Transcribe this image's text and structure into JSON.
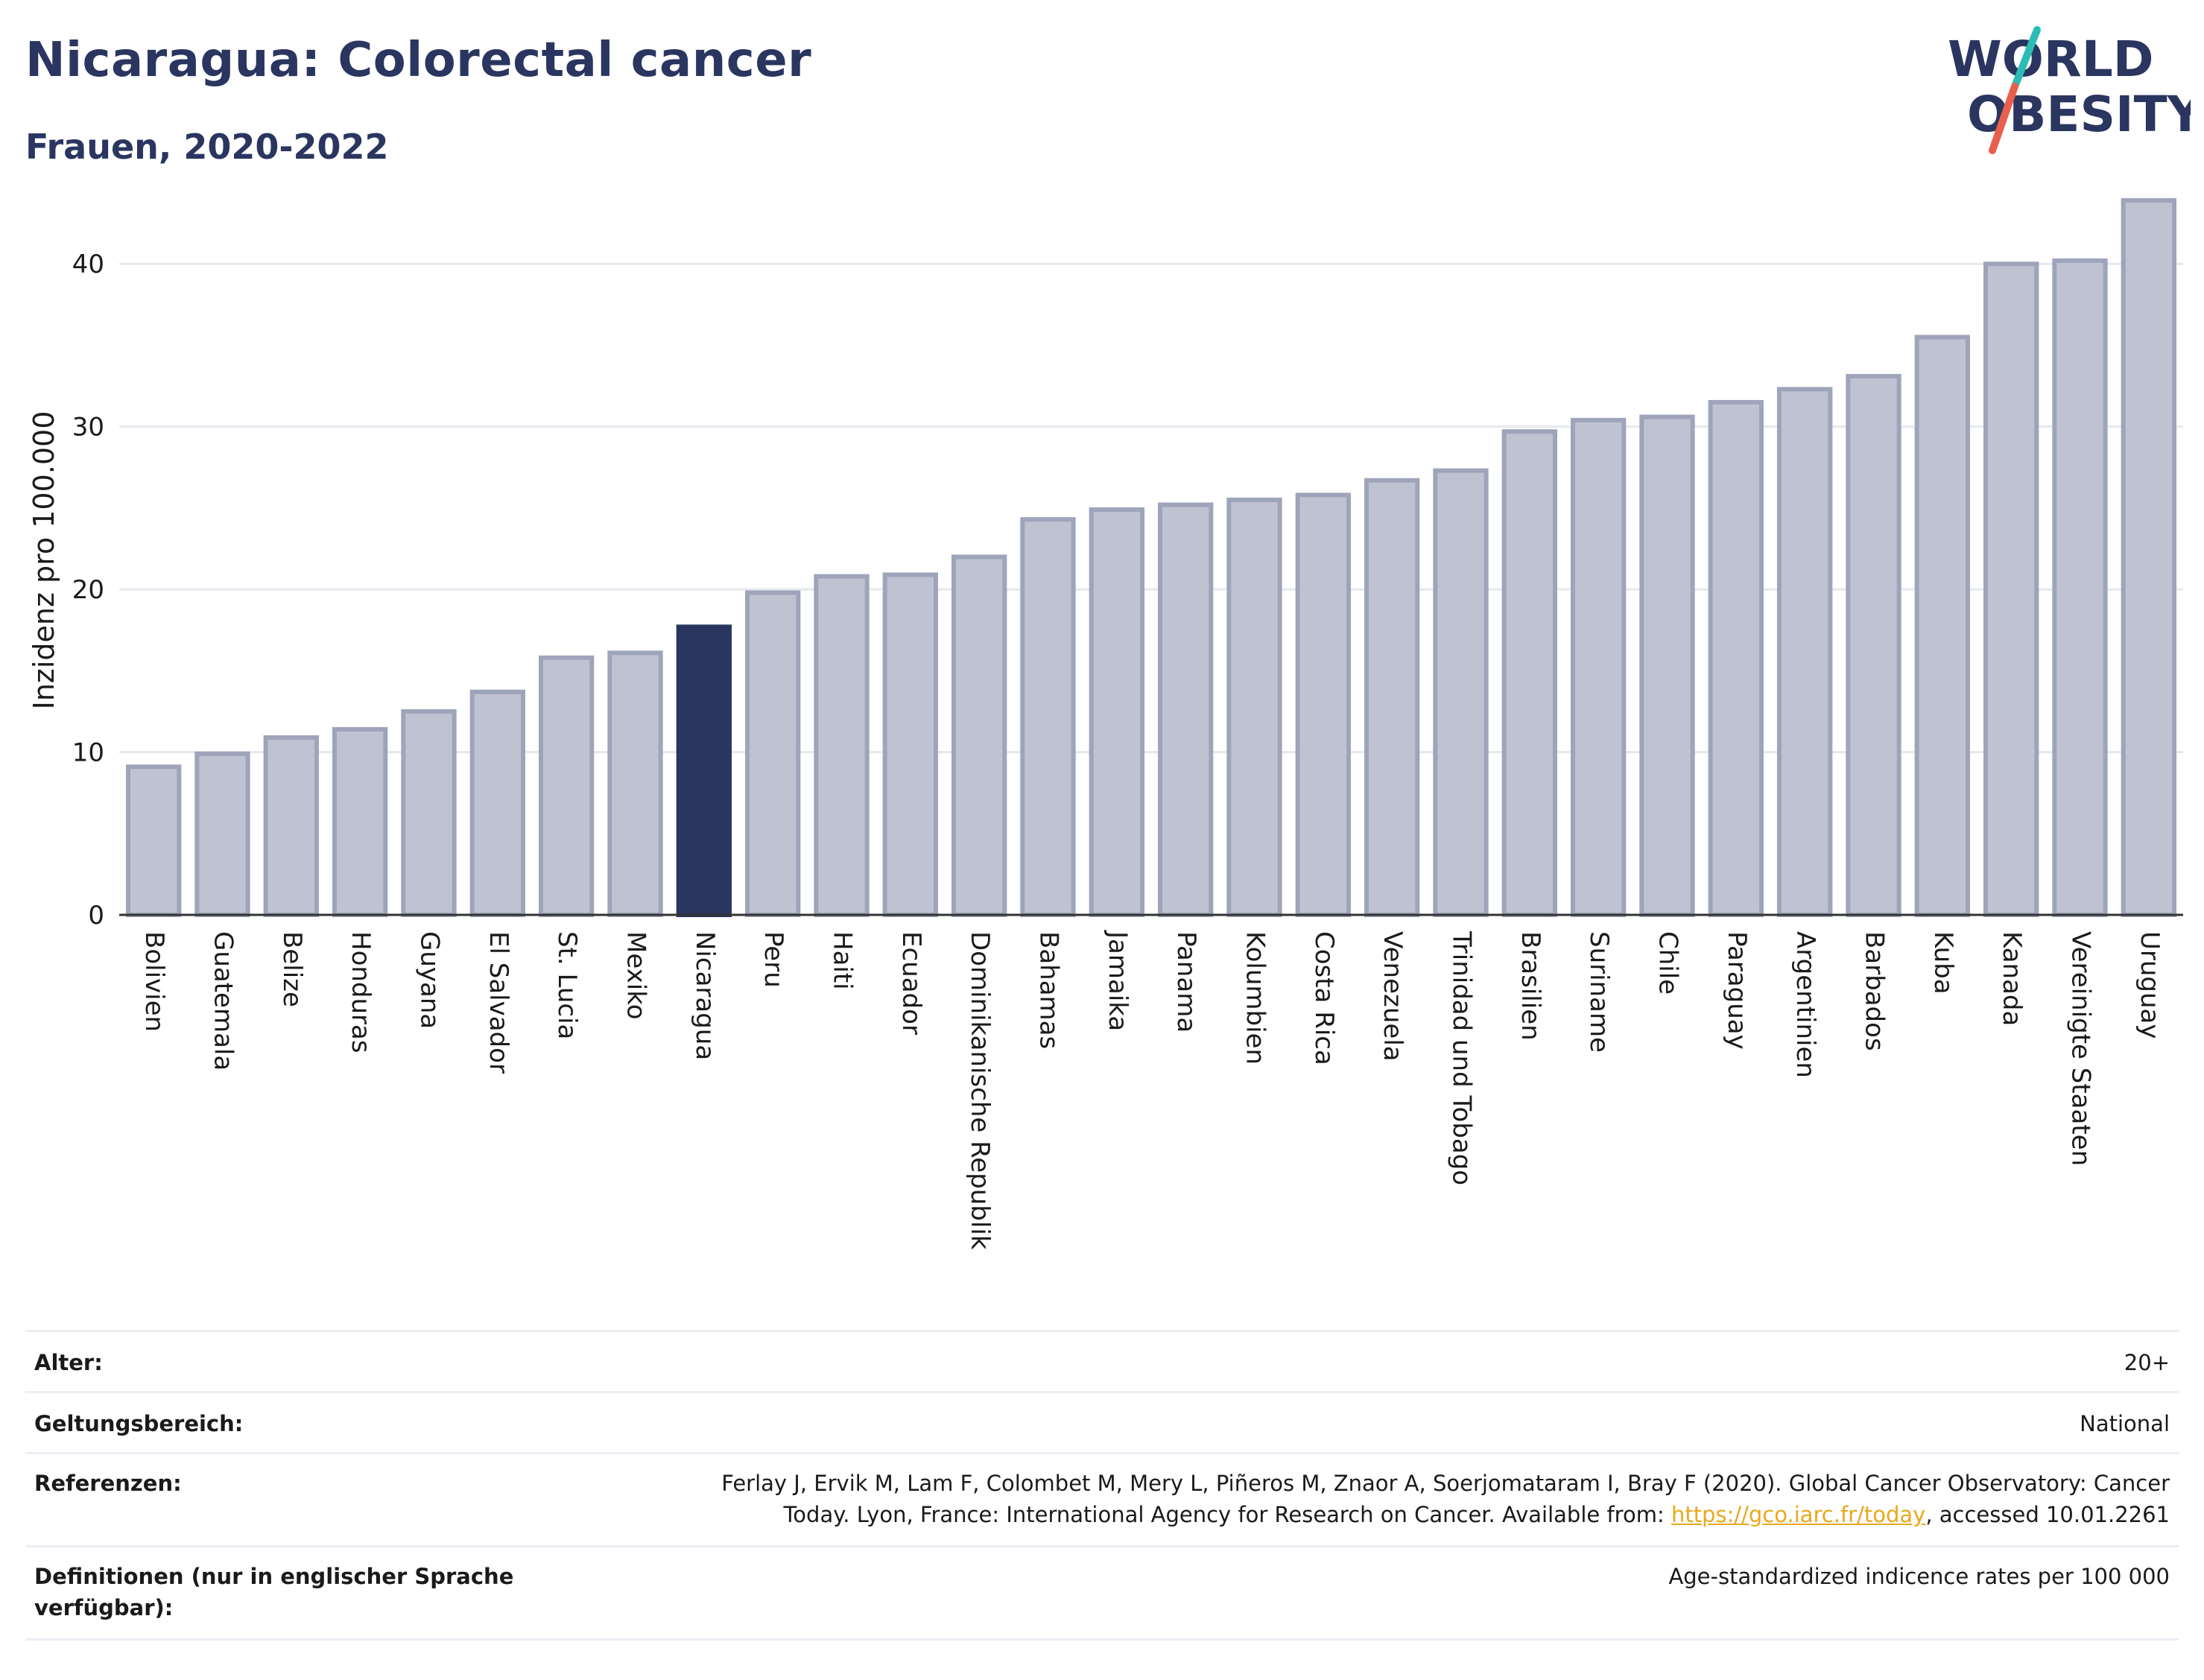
{
  "header": {
    "title": "Nicaragua: Colorectal cancer",
    "subtitle": "Frauen, 2020-2022"
  },
  "logo": {
    "line1": "WORLD",
    "line2": "OBESITY",
    "colors": {
      "text": "#2a3560",
      "slash_top": "#2bbcb4",
      "slash_bottom": "#e8604c"
    }
  },
  "colors": {
    "bar": "#bfc3d1",
    "bar_border": "#9ea4ba",
    "highlight": "#2a3560",
    "grid": "#e6e8ee",
    "axis": "#333333",
    "link": "#e8a91c"
  },
  "chart_data": {
    "type": "bar",
    "title": "",
    "ylabel": "Inzidenz pro 100.000",
    "xlabel": "",
    "ylim": [
      0,
      45
    ],
    "yticks": [
      0,
      10,
      20,
      30,
      40
    ],
    "grid": true,
    "highlight": "Nicaragua",
    "categories": [
      "Bolivien",
      "Guatemala",
      "Belize",
      "Honduras",
      "Guyana",
      "El Salvador",
      "St. Lucia",
      "Mexiko",
      "Nicaragua",
      "Peru",
      "Haiti",
      "Ecuador",
      "Dominikanische Republik",
      "Bahamas",
      "Jamaika",
      "Panama",
      "Kolumbien",
      "Costa Rica",
      "Venezuela",
      "Trinidad und Tobago",
      "Brasilien",
      "Suriname",
      "Chile",
      "Paraguay",
      "Argentinien",
      "Barbados",
      "Kuba",
      "Kanada",
      "Vereinigte Staaten",
      "Uruguay"
    ],
    "values": [
      9.1,
      9.9,
      10.9,
      11.4,
      12.5,
      13.7,
      15.8,
      16.1,
      17.7,
      19.8,
      20.8,
      20.9,
      22.0,
      24.3,
      24.9,
      25.2,
      25.5,
      25.8,
      26.7,
      27.3,
      29.7,
      30.4,
      30.6,
      31.5,
      32.3,
      33.1,
      35.5,
      40.0,
      40.2,
      43.9
    ]
  },
  "meta": {
    "age_label": "Alter:",
    "age_value": "20+",
    "scope_label": "Geltungsbereich:",
    "scope_value": "National",
    "ref_label": "Referenzen:",
    "ref_line1": "Ferlay J, Ervik M, Lam F, Colombet M, Mery L, Piñeros M, Znaor A, Soerjomataram I, Bray F (2020). Global Cancer Observatory: Cancer",
    "ref_line2_pre": "Today. Lyon, France: International Agency for Research on Cancer. Available from: ",
    "ref_link": "https://gco.iarc.fr/today",
    "ref_line2_post": ", accessed 10.01.2261",
    "def_label_line1": "Definitionen (nur in englischer Sprache",
    "def_label_line2": "verfügbar):",
    "def_value": "Age-standardized indicence rates per 100 000"
  }
}
